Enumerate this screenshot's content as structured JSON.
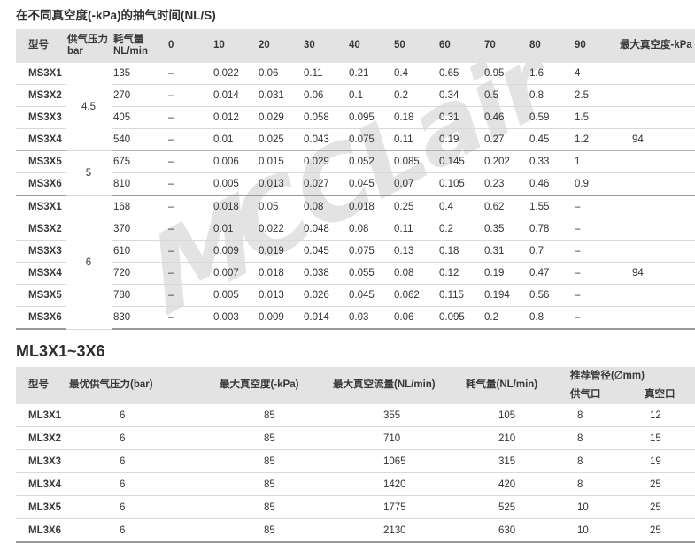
{
  "colors": {
    "header_bg": "#e3e3e3",
    "row_line": "#d9d9d9",
    "subgroup_line": "#b0b0b0",
    "group_line": "#9a9a9a",
    "text": "#333333",
    "watermark": "#d2d2d2"
  },
  "watermark": {
    "logo": "M",
    "text": "CCLair"
  },
  "table1": {
    "title": "在不同真空度(-kPa)的抽气时间(NL/S)",
    "header": {
      "model": "型号",
      "pressure_line1": "供气压力",
      "pressure_line2": "bar",
      "consumption_line1": "耗气量",
      "consumption_line2": "NL/min",
      "vacuum_levels": [
        "0",
        "10",
        "20",
        "30",
        "40",
        "50",
        "60",
        "70",
        "80",
        "90"
      ],
      "max_vacuum": "最大真空度-kPa"
    },
    "rows": [
      {
        "model": "MS3X1",
        "pressure": "4.5",
        "pressure_span": 4,
        "pressure_sep": "pbm",
        "consumption": "135",
        "values": [
          "–",
          "0.022",
          "0.06",
          "0.11",
          "0.21",
          "0.4",
          "0.65",
          "0.95",
          "1.6",
          "4"
        ],
        "maxvac": "",
        "sep": "light"
      },
      {
        "model": "MS3X2",
        "consumption": "270",
        "values": [
          "–",
          "0.014",
          "0.031",
          "0.06",
          "0.1",
          "0.2",
          "0.34",
          "0.5",
          "0.8",
          "2.5"
        ],
        "maxvac": "",
        "sep": "light"
      },
      {
        "model": "MS3X3",
        "consumption": "405",
        "values": [
          "–",
          "0.012",
          "0.029",
          "0.058",
          "0.095",
          "0.18",
          "0.31",
          "0.46",
          "0.59",
          "1.5"
        ],
        "maxvac": "",
        "sep": "light"
      },
      {
        "model": "MS3X4",
        "consumption": "540",
        "values": [
          "–",
          "0.01",
          "0.025",
          "0.043",
          "0.075",
          "0.11",
          "0.19",
          "0.27",
          "0.45",
          "1.2"
        ],
        "maxvac": "94",
        "sep": "mid"
      },
      {
        "model": "MS3X5",
        "pressure": "5",
        "pressure_span": 2,
        "pressure_sep": "pbd",
        "consumption": "675",
        "values": [
          "–",
          "0.006",
          "0.015",
          "0.029",
          "0.052",
          "0.085",
          "0.145",
          "0.202",
          "0.33",
          "1"
        ],
        "maxvac": "",
        "sep": "light"
      },
      {
        "model": "MS3X6",
        "consumption": "810",
        "values": [
          "–",
          "0.005",
          "0.013",
          "0.027",
          "0.045",
          "0.07",
          "0.105",
          "0.23",
          "0.46",
          "0.9"
        ],
        "maxvac": "",
        "sep": "dark"
      },
      {
        "model": "MS3X1",
        "pressure": "6",
        "pressure_span": 6,
        "pressure_sep": "pbd",
        "consumption": "168",
        "values": [
          "–",
          "0.018",
          "0.05",
          "0.08",
          "0.018",
          "0.25",
          "0.4",
          "0.62",
          "1.55",
          "–"
        ],
        "maxvac": "",
        "sep": "light"
      },
      {
        "model": "MS3X2",
        "consumption": "370",
        "values": [
          "–",
          "0.01",
          "0.022",
          "0.048",
          "0.08",
          "0.11",
          "0.2",
          "0.35",
          "0.78",
          "–"
        ],
        "maxvac": "",
        "sep": "light"
      },
      {
        "model": "MS3X3",
        "consumption": "610",
        "values": [
          "–",
          "0.009",
          "0.019",
          "0.045",
          "0.075",
          "0.13",
          "0.18",
          "0.31",
          "0.7",
          "–"
        ],
        "maxvac": "",
        "sep": "light"
      },
      {
        "model": "MS3X4",
        "consumption": "720",
        "values": [
          "–",
          "0.007",
          "0.018",
          "0.038",
          "0.055",
          "0.08",
          "0.12",
          "0.19",
          "0.47",
          "–"
        ],
        "maxvac": "94",
        "sep": "light"
      },
      {
        "model": "MS3X5",
        "consumption": "780",
        "values": [
          "–",
          "0.005",
          "0.013",
          "0.026",
          "0.045",
          "0.062",
          "0.115",
          "0.194",
          "0.56",
          "–"
        ],
        "maxvac": "",
        "sep": "light"
      },
      {
        "model": "MS3X6",
        "consumption": "830",
        "values": [
          "–",
          "0.003",
          "0.009",
          "0.014",
          "0.03",
          "0.06",
          "0.095",
          "0.2",
          "0.8",
          "–"
        ],
        "maxvac": "",
        "sep": "dark"
      }
    ]
  },
  "table2": {
    "title": "ML3X1~3X6",
    "header": {
      "model": "型号",
      "pressure": "最优供气压力(bar)",
      "max_vacuum": "最大真空度(-kPa)",
      "flow": "最大真空流量(NL/min)",
      "consumption": "耗气量(NL/min)",
      "pipe": "推荐管径(∅mm)",
      "supply_port": "供气口",
      "vacuum_port": "真空口"
    },
    "rows": [
      {
        "model": "ML3X1",
        "pressure": "6",
        "max_vacuum": "85",
        "flow": "355",
        "consumption": "105",
        "supply_port": "8",
        "vacuum_port": "12",
        "sep": "light"
      },
      {
        "model": "ML3X2",
        "pressure": "6",
        "max_vacuum": "85",
        "flow": "710",
        "consumption": "210",
        "supply_port": "8",
        "vacuum_port": "15",
        "sep": "light"
      },
      {
        "model": "ML3X3",
        "pressure": "6",
        "max_vacuum": "85",
        "flow": "1065",
        "consumption": "315",
        "supply_port": "8",
        "vacuum_port": "19",
        "sep": "light"
      },
      {
        "model": "ML3X4",
        "pressure": "6",
        "max_vacuum": "85",
        "flow": "1420",
        "consumption": "420",
        "supply_port": "8",
        "vacuum_port": "25",
        "sep": "light"
      },
      {
        "model": "ML3X5",
        "pressure": "6",
        "max_vacuum": "85",
        "flow": "1775",
        "consumption": "525",
        "supply_port": "10",
        "vacuum_port": "25",
        "sep": "light"
      },
      {
        "model": "ML3X6",
        "pressure": "6",
        "max_vacuum": "85",
        "flow": "2130",
        "consumption": "630",
        "supply_port": "10",
        "vacuum_port": "25",
        "sep": "dark"
      }
    ]
  }
}
